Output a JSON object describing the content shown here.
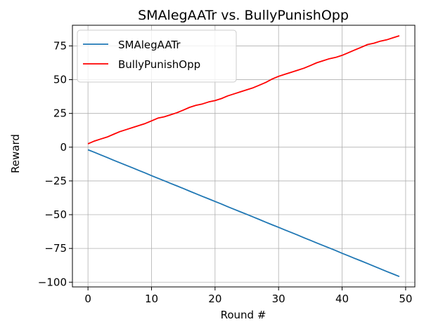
{
  "chart_data": {
    "type": "line",
    "title": "SMAlegAATr vs. BullyPunishOpp",
    "xlabel": "Round #",
    "ylabel": "Reward",
    "xlim": [
      -2.45,
      51.45
    ],
    "ylim": [
      -103.5,
      90.3
    ],
    "x_ticks": [
      0,
      10,
      20,
      30,
      40,
      50
    ],
    "y_ticks": [
      -100,
      -75,
      -50,
      -25,
      0,
      25,
      50,
      75
    ],
    "x_tick_labels": [
      "0",
      "10",
      "20",
      "30",
      "40",
      "50"
    ],
    "y_tick_labels": [
      "−100",
      "−75",
      "−50",
      "−25",
      "0",
      "25",
      "50",
      "75"
    ],
    "grid": true,
    "legend_position": "top-left",
    "x": [
      0,
      1,
      2,
      3,
      4,
      5,
      6,
      7,
      8,
      9,
      10,
      11,
      12,
      13,
      14,
      15,
      16,
      17,
      18,
      19,
      20,
      21,
      22,
      23,
      24,
      25,
      26,
      27,
      28,
      29,
      30,
      31,
      32,
      33,
      34,
      35,
      36,
      37,
      38,
      39,
      40,
      41,
      42,
      43,
      44,
      45,
      46,
      47,
      48,
      49
    ],
    "series": [
      {
        "name": "SMAlegAATr",
        "color": "#1f77b4",
        "values": [
          -1.9,
          -3.8,
          -5.7,
          -7.6,
          -9.6,
          -11.5,
          -13.4,
          -15.3,
          -17.2,
          -19.1,
          -21.1,
          -23.0,
          -24.9,
          -26.8,
          -28.7,
          -30.6,
          -32.6,
          -34.5,
          -36.4,
          -38.3,
          -40.2,
          -42.1,
          -44.1,
          -46.0,
          -47.9,
          -49.8,
          -51.7,
          -53.6,
          -55.6,
          -57.5,
          -59.4,
          -61.3,
          -63.2,
          -65.1,
          -67.1,
          -69.0,
          -70.9,
          -72.8,
          -74.7,
          -76.6,
          -78.6,
          -80.5,
          -82.4,
          -84.3,
          -86.2,
          -88.1,
          -90.1,
          -92.0,
          -93.9,
          -95.8
        ]
      },
      {
        "name": "BullyPunishOpp",
        "color": "#ff0000",
        "values": [
          2.5,
          4.5,
          6.0,
          7.5,
          9.5,
          11.5,
          13.0,
          14.5,
          16.0,
          17.5,
          19.5,
          21.5,
          22.5,
          24.0,
          25.5,
          27.5,
          29.5,
          31.0,
          32.0,
          33.5,
          34.5,
          36.0,
          38.0,
          39.5,
          41.0,
          42.5,
          44.0,
          46.0,
          48.0,
          50.5,
          52.5,
          54.0,
          55.5,
          57.0,
          58.5,
          60.5,
          62.5,
          64.0,
          65.5,
          66.5,
          68.0,
          70.0,
          72.0,
          74.0,
          76.0,
          77.0,
          78.5,
          79.5,
          81.0,
          82.5
        ]
      }
    ]
  }
}
